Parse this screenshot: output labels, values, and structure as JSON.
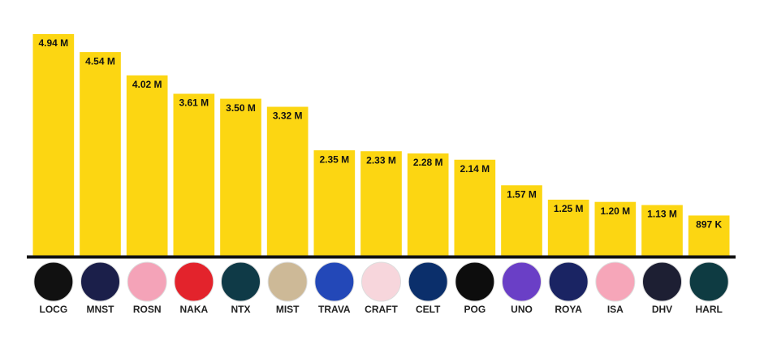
{
  "chart_data": {
    "type": "bar",
    "color": "#fcd612",
    "categories": [
      "LOCG",
      "MNST",
      "ROSN",
      "NAKA",
      "NTX",
      "MIST",
      "TRAVA",
      "CRAFT",
      "CELT",
      "POG",
      "UNO",
      "ROYA",
      "ISA",
      "DHV",
      "HARL"
    ],
    "values": [
      4940000,
      4540000,
      4020000,
      3610000,
      3500000,
      3320000,
      2350000,
      2330000,
      2280000,
      2140000,
      1570000,
      1250000,
      1200000,
      1130000,
      897000
    ],
    "value_labels": [
      "4.94 M",
      "4.54 M",
      "4.02 M",
      "3.61 M",
      "3.50 M",
      "3.32 M",
      "2.35 M",
      "2.33 M",
      "2.28 M",
      "2.14 M",
      "1.57 M",
      "1.25 M",
      "1.20 M",
      "1.13 M",
      "897 K"
    ]
  }
}
